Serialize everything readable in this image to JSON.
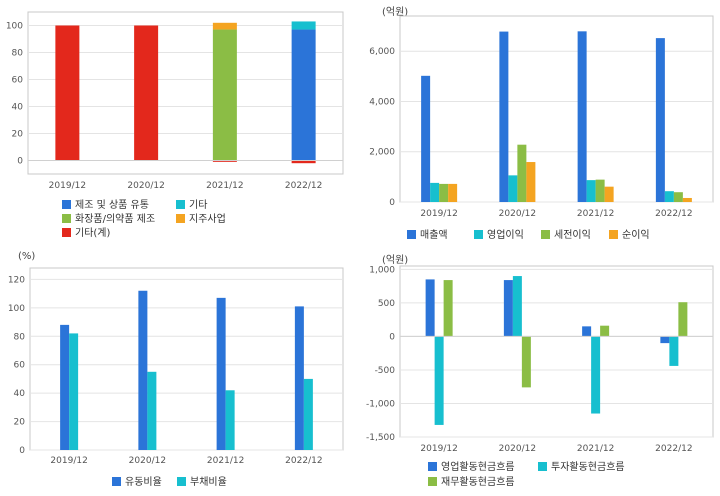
{
  "chart_data": [
    {
      "id": "c1",
      "type": "bar",
      "stacked": true,
      "unit": "",
      "categories": [
        "2019/12",
        "2020/12",
        "2021/12",
        "2022/12"
      ],
      "ylim": [
        -10,
        110
      ],
      "yticks": [
        0,
        20,
        40,
        60,
        80,
        100
      ],
      "series": [
        {
          "name": "제조 및 상품 유통",
          "color": "#2b74d8",
          "values": [
            0,
            0,
            0,
            97
          ]
        },
        {
          "name": "기타",
          "color": "#17bfcf",
          "values": [
            0,
            0,
            0,
            6
          ]
        },
        {
          "name": "화장품/의약품 제조",
          "color": "#8bbd45",
          "values": [
            0,
            0,
            97,
            0
          ]
        },
        {
          "name": "지주사업",
          "color": "#f4a421",
          "values": [
            0,
            0,
            5,
            0
          ]
        },
        {
          "name": "기타(계)",
          "color": "#e3281c",
          "values": [
            100,
            100,
            -1,
            -2
          ]
        }
      ]
    },
    {
      "id": "c2",
      "type": "bar",
      "unit": "(억원)",
      "categories": [
        "2019/12",
        "2020/12",
        "2021/12",
        "2022/12"
      ],
      "ylim": [
        0,
        7400
      ],
      "yticks": [
        0,
        2000,
        4000,
        6000
      ],
      "yticklabels": [
        "0",
        "2,000",
        "4,000",
        "6,000"
      ],
      "series": [
        {
          "name": "매출액",
          "color": "#2b74d8",
          "values": [
            5020,
            6780,
            6790,
            6520
          ]
        },
        {
          "name": "영업이익",
          "color": "#17bfcf",
          "values": [
            760,
            1060,
            870,
            430
          ]
        },
        {
          "name": "세전이익",
          "color": "#8bbd45",
          "values": [
            720,
            2280,
            890,
            390
          ]
        },
        {
          "name": "순이익",
          "color": "#f4a421",
          "values": [
            720,
            1590,
            610,
            160
          ]
        }
      ]
    },
    {
      "id": "c3",
      "type": "bar",
      "unit": "(%)",
      "categories": [
        "2019/12",
        "2020/12",
        "2021/12",
        "2022/12"
      ],
      "ylim": [
        0,
        128
      ],
      "yticks": [
        0,
        20,
        40,
        60,
        80,
        100,
        120
      ],
      "series": [
        {
          "name": "유동비율",
          "color": "#2b74d8",
          "values": [
            88,
            112,
            107,
            101
          ]
        },
        {
          "name": "부채비율",
          "color": "#17bfcf",
          "values": [
            82,
            55,
            42,
            50
          ]
        }
      ]
    },
    {
      "id": "c4",
      "type": "bar",
      "unit": "(억원)",
      "categories": [
        "2019/12",
        "2020/12",
        "2021/12",
        "2022/12"
      ],
      "ylim": [
        -1500,
        1050
      ],
      "yticks": [
        -1500,
        -1000,
        -500,
        0,
        500,
        1000
      ],
      "yticklabels": [
        "-1,500",
        "-1,000",
        "-500",
        "0",
        "500",
        "1,000"
      ],
      "series": [
        {
          "name": "영업활동현금흐름",
          "color": "#2b74d8",
          "values": [
            850,
            840,
            150,
            -100
          ]
        },
        {
          "name": "투자활동현금흐름",
          "color": "#17bfcf",
          "values": [
            -1320,
            900,
            -1150,
            -440
          ]
        },
        {
          "name": "재무활동현금흐름",
          "color": "#8bbd45",
          "values": [
            840,
            -760,
            160,
            510
          ]
        }
      ]
    }
  ]
}
